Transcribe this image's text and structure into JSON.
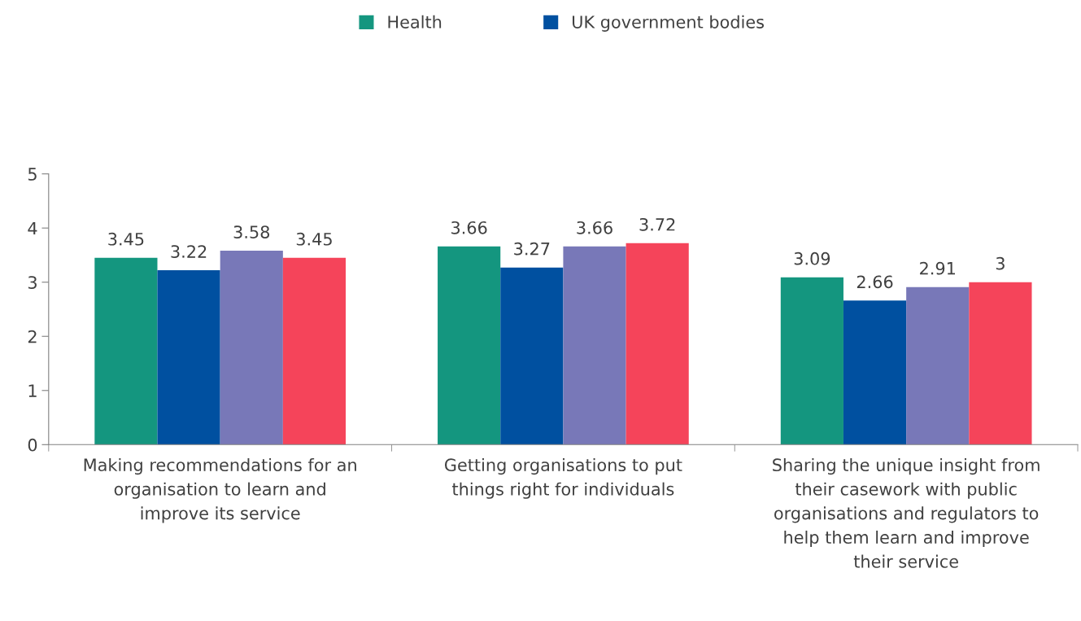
{
  "chart_data": {
    "type": "bar",
    "categories": [
      "Making recommendations for an\norganisation to learn and\nimprove its service",
      "Getting organisations to put\nthings right for individuals",
      "Sharing the unique insight from\ntheir casework with public\norganisations and regulators to\nhelp them learn and improve\ntheir service"
    ],
    "series": [
      {
        "name": "Health",
        "color": "#14967f",
        "values": [
          3.45,
          3.66,
          3.09
        ]
      },
      {
        "name": "UK government bodies",
        "color": "#0050a0",
        "values": [
          3.22,
          3.27,
          2.66
        ]
      },
      {
        "color": "#7878b8",
        "values": [
          3.58,
          3.66,
          2.91
        ]
      },
      {
        "color": "#f5445a",
        "values": [
          3.45,
          3.72,
          3
        ]
      }
    ],
    "ylim": [
      0,
      5
    ],
    "yticks": [
      0,
      1,
      2,
      3,
      4,
      5
    ],
    "data_labels": true,
    "grid": false,
    "legend": "top"
  }
}
